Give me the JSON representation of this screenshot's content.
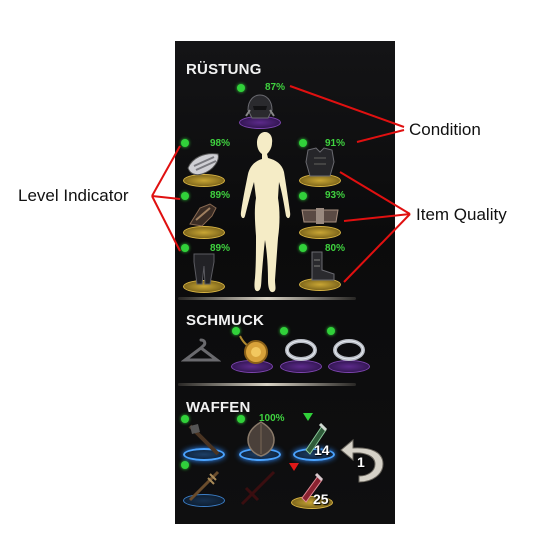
{
  "sections": {
    "armor": "RÜSTUNG",
    "jewelry": "SCHMUCK",
    "weapons": "WAFFEN"
  },
  "armor_slots": [
    {
      "slot": "head",
      "condition": "87%",
      "quality": "purple"
    },
    {
      "slot": "shoulders",
      "condition": "98%",
      "quality": "gold"
    },
    {
      "slot": "chest",
      "condition": "91%",
      "quality": "gold"
    },
    {
      "slot": "hands",
      "condition": "89%",
      "quality": "gold"
    },
    {
      "slot": "belt",
      "condition": "93%",
      "quality": "gold"
    },
    {
      "slot": "legs",
      "condition": "89%",
      "quality": "gold"
    },
    {
      "slot": "feet",
      "condition": "80%",
      "quality": "gold"
    }
  ],
  "jewelry_slots": [
    {
      "slot": "costume",
      "quality": "none"
    },
    {
      "slot": "neck",
      "quality": "purple"
    },
    {
      "slot": "ring-1",
      "quality": "purple"
    },
    {
      "slot": "ring-2",
      "quality": "purple"
    }
  ],
  "weapon_slots": {
    "weapon_condition": "100%",
    "poison_count_1": "14",
    "poison_count_2": "25",
    "swap_set": "1"
  },
  "annotations": {
    "condition": "Condition",
    "level_indicator": "Level Indicator",
    "item_quality": "Item Quality"
  },
  "colors": {
    "condition_text": "#3fd23f",
    "level_dot": "#31d13a",
    "annotation_line": "#e01010",
    "quality_purple": "#5c2a8a",
    "quality_gold": "#c9a634",
    "weapon_active": "#4aa3ff"
  }
}
